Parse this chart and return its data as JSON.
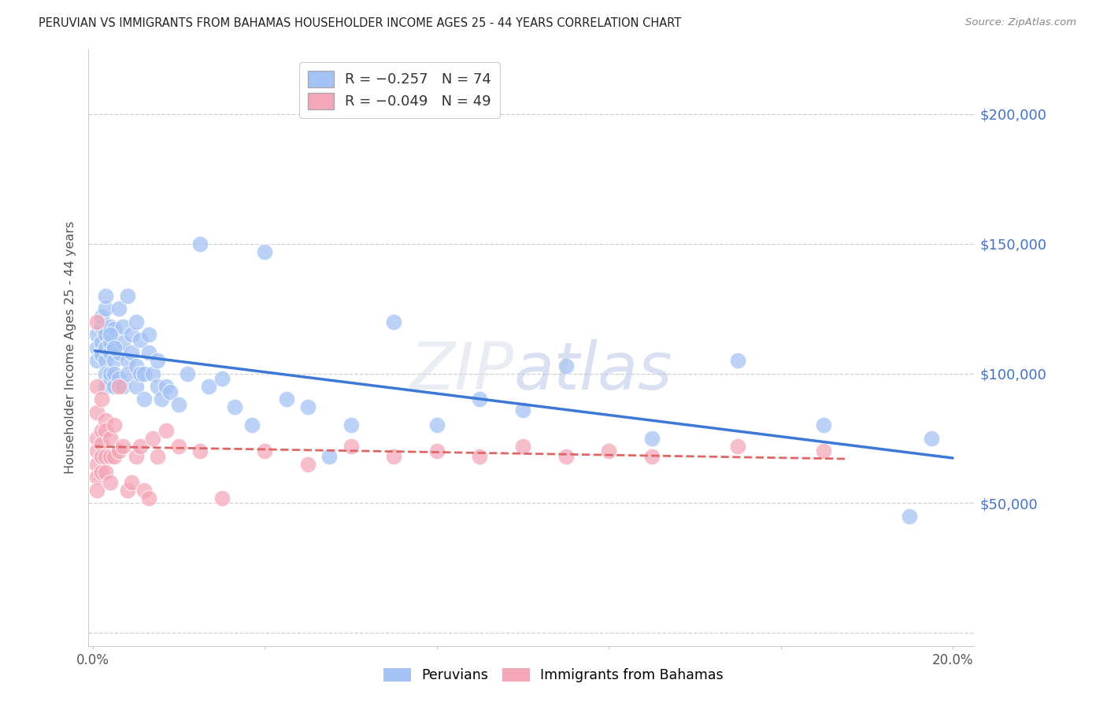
{
  "title": "PERUVIAN VS IMMIGRANTS FROM BAHAMAS HOUSEHOLDER INCOME AGES 25 - 44 YEARS CORRELATION CHART",
  "source": "Source: ZipAtlas.com",
  "ylabel": "Householder Income Ages 25 - 44 years",
  "yticks": [
    0,
    50000,
    100000,
    150000,
    200000
  ],
  "ytick_labels": [
    "",
    "$50,000",
    "$100,000",
    "$150,000",
    "$200,000"
  ],
  "ylim": [
    -5000,
    225000
  ],
  "xlim": [
    -0.001,
    0.205
  ],
  "legend_blue_r": "R = -0.257",
  "legend_blue_n": "N = 74",
  "legend_pink_r": "R = -0.049",
  "legend_pink_n": "N = 49",
  "blue_color": "#a4c2f4",
  "pink_color": "#f4a7b9",
  "line_blue": "#3c78d8",
  "line_pink": "#e06666",
  "axis_label_color": "#555555",
  "tick_color": "#4472c4",
  "peruvians_x": [
    0.001,
    0.001,
    0.001,
    0.002,
    0.002,
    0.002,
    0.002,
    0.002,
    0.003,
    0.003,
    0.003,
    0.003,
    0.003,
    0.003,
    0.004,
    0.004,
    0.004,
    0.004,
    0.004,
    0.005,
    0.005,
    0.005,
    0.005,
    0.006,
    0.006,
    0.006,
    0.007,
    0.007,
    0.007,
    0.008,
    0.008,
    0.008,
    0.009,
    0.009,
    0.01,
    0.01,
    0.01,
    0.011,
    0.011,
    0.012,
    0.012,
    0.013,
    0.013,
    0.014,
    0.015,
    0.015,
    0.016,
    0.017,
    0.018,
    0.02,
    0.022,
    0.025,
    0.027,
    0.03,
    0.033,
    0.037,
    0.04,
    0.045,
    0.05,
    0.055,
    0.06,
    0.07,
    0.08,
    0.09,
    0.1,
    0.11,
    0.13,
    0.15,
    0.17,
    0.19,
    0.195,
    0.003,
    0.004,
    0.005
  ],
  "peruvians_y": [
    110000,
    105000,
    115000,
    108000,
    112000,
    118000,
    107000,
    122000,
    115000,
    105000,
    110000,
    100000,
    95000,
    125000,
    108000,
    98000,
    112000,
    100000,
    118000,
    105000,
    117000,
    100000,
    95000,
    125000,
    108000,
    98000,
    112000,
    118000,
    95000,
    130000,
    105000,
    100000,
    115000,
    108000,
    120000,
    95000,
    103000,
    100000,
    113000,
    100000,
    90000,
    108000,
    115000,
    100000,
    95000,
    105000,
    90000,
    95000,
    93000,
    88000,
    100000,
    150000,
    95000,
    98000,
    87000,
    80000,
    147000,
    90000,
    87000,
    68000,
    80000,
    120000,
    80000,
    90000,
    86000,
    103000,
    75000,
    105000,
    80000,
    45000,
    75000,
    130000,
    115000,
    110000
  ],
  "bahamas_x": [
    0.001,
    0.001,
    0.001,
    0.001,
    0.001,
    0.001,
    0.001,
    0.001,
    0.002,
    0.002,
    0.002,
    0.002,
    0.002,
    0.003,
    0.003,
    0.003,
    0.003,
    0.004,
    0.004,
    0.004,
    0.005,
    0.005,
    0.006,
    0.006,
    0.007,
    0.008,
    0.009,
    0.01,
    0.011,
    0.012,
    0.013,
    0.014,
    0.015,
    0.017,
    0.02,
    0.025,
    0.03,
    0.04,
    0.05,
    0.06,
    0.07,
    0.08,
    0.09,
    0.1,
    0.11,
    0.12,
    0.13,
    0.15,
    0.17
  ],
  "bahamas_y": [
    120000,
    95000,
    85000,
    75000,
    70000,
    65000,
    60000,
    55000,
    90000,
    78000,
    73000,
    68000,
    62000,
    82000,
    78000,
    68000,
    62000,
    75000,
    68000,
    58000,
    80000,
    68000,
    95000,
    70000,
    72000,
    55000,
    58000,
    68000,
    72000,
    55000,
    52000,
    75000,
    68000,
    78000,
    72000,
    70000,
    52000,
    70000,
    65000,
    72000,
    68000,
    70000,
    68000,
    72000,
    68000,
    70000,
    68000,
    72000,
    70000
  ]
}
